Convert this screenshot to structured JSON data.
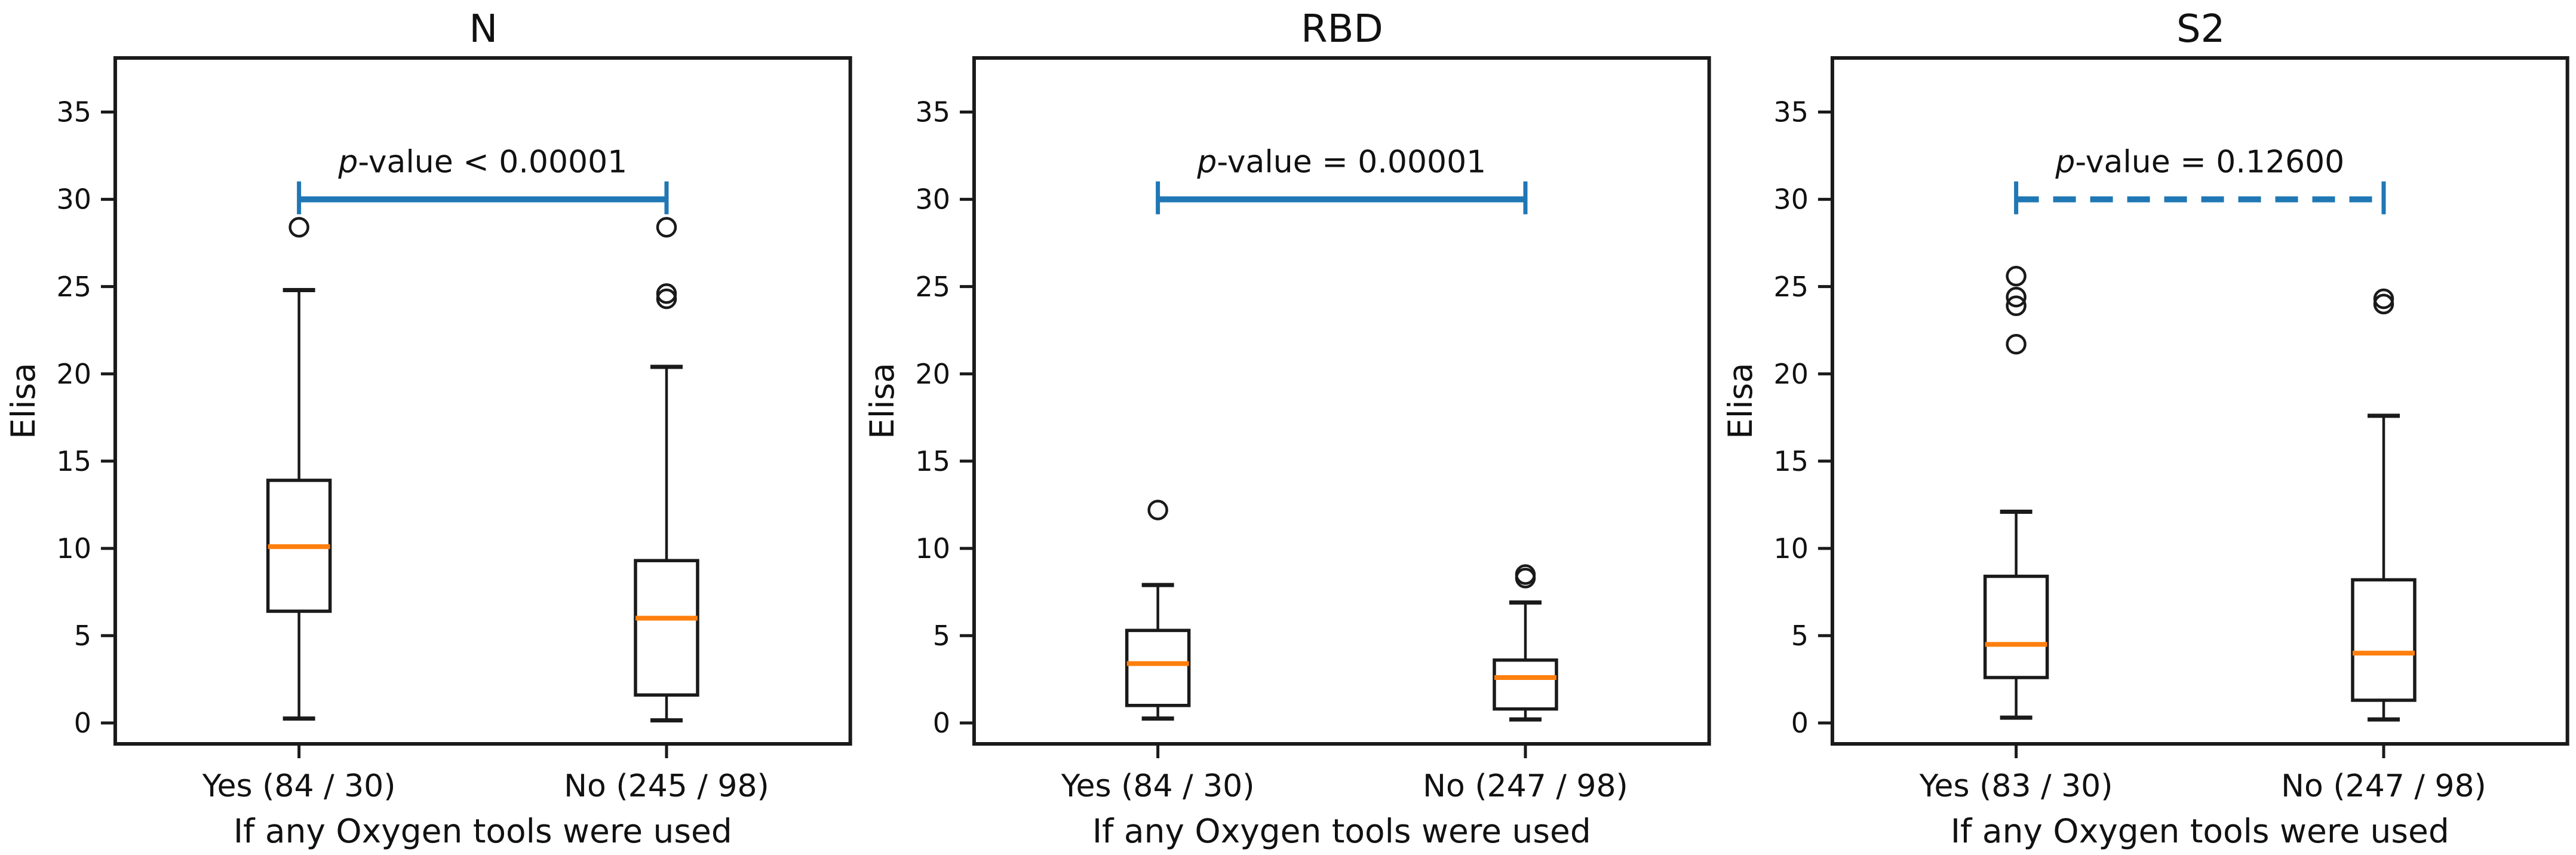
{
  "figure": {
    "background": "#ffffff",
    "accent_blue": "#1f77b4",
    "median_orange": "#ff7f0e",
    "line_color": "#1a1a1a",
    "text_color": "#111111"
  },
  "chart_data": [
    {
      "type": "boxplot",
      "title": "N",
      "ylabel": "Elisa",
      "xlabel": "If any Oxygen tools were used",
      "categories": [
        "Yes (84 / 30)",
        "No (245 / 98)"
      ],
      "yticks": [
        0,
        5,
        10,
        15,
        20,
        25,
        30,
        35
      ],
      "ylim": [
        -1.2,
        38.1
      ],
      "p_value_label": "p-value < 0.00001",
      "p_line_style": "solid",
      "p_line_y": 30,
      "boxes": [
        {
          "label": "Yes (84 / 30)",
          "whislo": 0.25,
          "q1": 6.4,
          "med": 10.1,
          "q3": 13.9,
          "whishi": 24.8,
          "fliers": [
            28.4
          ]
        },
        {
          "label": "No (245 / 98)",
          "whislo": 0.15,
          "q1": 1.6,
          "med": 6.0,
          "q3": 9.3,
          "whishi": 20.4,
          "fliers": [
            24.3,
            24.6,
            28.4
          ]
        }
      ]
    },
    {
      "type": "boxplot",
      "title": "RBD",
      "ylabel": "Elisa",
      "xlabel": "If any Oxygen tools were used",
      "categories": [
        "Yes (84 / 30)",
        "No (247 / 98)"
      ],
      "yticks": [
        0,
        5,
        10,
        15,
        20,
        25,
        30,
        35
      ],
      "ylim": [
        -1.2,
        38.1
      ],
      "p_value_label": "p-value = 0.00001",
      "p_line_style": "solid",
      "p_line_y": 30,
      "boxes": [
        {
          "label": "Yes (84 / 30)",
          "whislo": 0.25,
          "q1": 1.0,
          "med": 3.4,
          "q3": 5.3,
          "whishi": 7.9,
          "fliers": [
            12.2
          ]
        },
        {
          "label": "No (247 / 98)",
          "whislo": 0.2,
          "q1": 0.8,
          "med": 2.6,
          "q3": 3.6,
          "whishi": 6.9,
          "fliers": [
            8.3,
            8.5
          ]
        }
      ]
    },
    {
      "type": "boxplot",
      "title": "S2",
      "ylabel": "Elisa",
      "xlabel": "If any Oxygen tools were used",
      "categories": [
        "Yes (83 / 30)",
        "No (247 / 98)"
      ],
      "yticks": [
        0,
        5,
        10,
        15,
        20,
        25,
        30,
        35
      ],
      "ylim": [
        -1.2,
        38.1
      ],
      "p_value_label": "p-value = 0.12600",
      "p_line_style": "dashed",
      "p_line_y": 30,
      "boxes": [
        {
          "label": "Yes (83 / 30)",
          "whislo": 0.3,
          "q1": 2.6,
          "med": 4.5,
          "q3": 8.4,
          "whishi": 12.1,
          "fliers": [
            21.7,
            23.9,
            24.4,
            25.6
          ]
        },
        {
          "label": "No (247 / 98)",
          "whislo": 0.2,
          "q1": 1.3,
          "med": 4.0,
          "q3": 8.2,
          "whishi": 17.6,
          "fliers": [
            24.0,
            24.3
          ]
        }
      ]
    }
  ]
}
